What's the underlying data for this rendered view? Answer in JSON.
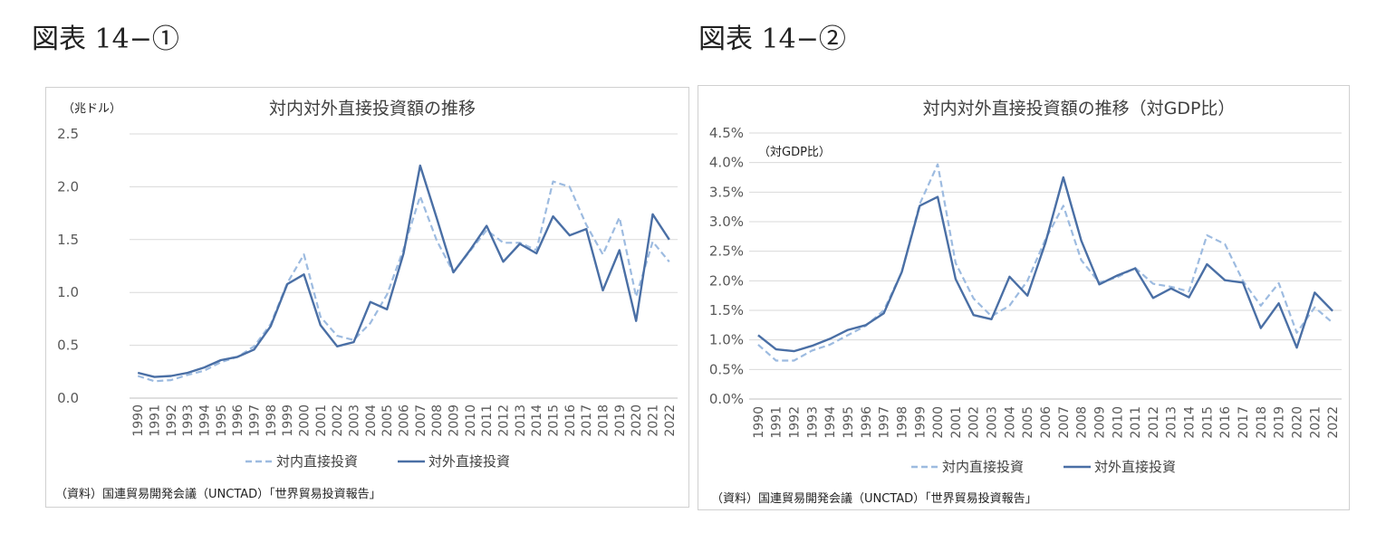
{
  "figures": [
    {
      "label": "図表 14−①"
    },
    {
      "label": "図表 14−②"
    }
  ],
  "colors": {
    "inward": "#9dbbe0",
    "outward": "#4a6fa5",
    "grid": "#d9d9d9"
  },
  "chart_data": [
    {
      "type": "line",
      "title": "対内対外直接投資額の推移",
      "unit_label": "（兆ドル）",
      "ylim": [
        0,
        2.5
      ],
      "yticks": [
        "0.0",
        "0.5",
        "1.0",
        "1.5",
        "2.0",
        "2.5"
      ],
      "ytick_values": [
        0,
        0.5,
        1.0,
        1.5,
        2.0,
        2.5
      ],
      "x": [
        "1990",
        "1991",
        "1992",
        "1993",
        "1994",
        "1995",
        "1996",
        "1997",
        "1998",
        "1999",
        "2000",
        "2001",
        "2002",
        "2003",
        "2004",
        "2005",
        "2006",
        "2007",
        "2008",
        "2009",
        "2010",
        "2011",
        "2012",
        "2013",
        "2014",
        "2015",
        "2016",
        "2017",
        "2018",
        "2019",
        "2020",
        "2021",
        "2022"
      ],
      "grid": true,
      "legend_position": "bottom",
      "series": [
        {
          "name": "対内直接投資",
          "style": "dashed",
          "values": [
            0.21,
            0.16,
            0.17,
            0.22,
            0.26,
            0.34,
            0.39,
            0.49,
            0.7,
            1.09,
            1.36,
            0.77,
            0.59,
            0.55,
            0.71,
            0.98,
            1.41,
            1.91,
            1.49,
            1.19,
            1.39,
            1.59,
            1.47,
            1.47,
            1.4,
            2.05,
            2.0,
            1.64,
            1.36,
            1.71,
            0.96,
            1.48,
            1.29
          ]
        },
        {
          "name": "対外直接投資",
          "style": "solid",
          "values": [
            0.24,
            0.2,
            0.21,
            0.24,
            0.29,
            0.36,
            0.39,
            0.46,
            0.68,
            1.08,
            1.17,
            0.69,
            0.49,
            0.53,
            0.91,
            0.84,
            1.37,
            2.2,
            1.7,
            1.19,
            1.4,
            1.63,
            1.29,
            1.46,
            1.37,
            1.72,
            1.54,
            1.6,
            1.02,
            1.4,
            0.73,
            1.74,
            1.5
          ]
        }
      ],
      "source": "（資料）国連貿易開発会議（UNCTAD）「世界貿易投資報告」"
    },
    {
      "type": "line",
      "title": "対内対外直接投資額の推移（対GDP比）",
      "unit_label": "（対GDP比）",
      "ylim": [
        0,
        4.5
      ],
      "yticks": [
        "0.0%",
        "0.5%",
        "1.0%",
        "1.5%",
        "2.0%",
        "2.5%",
        "3.0%",
        "3.5%",
        "4.0%",
        "4.5%"
      ],
      "ytick_values": [
        0,
        0.5,
        1.0,
        1.5,
        2.0,
        2.5,
        3.0,
        3.5,
        4.0,
        4.5
      ],
      "x": [
        "1990",
        "1991",
        "1992",
        "1993",
        "1994",
        "1995",
        "1996",
        "1997",
        "1998",
        "1999",
        "2000",
        "2001",
        "2002",
        "2003",
        "2004",
        "2005",
        "2006",
        "2007",
        "2008",
        "2009",
        "2010",
        "2011",
        "2012",
        "2013",
        "2014",
        "2015",
        "2016",
        "2017",
        "2018",
        "2019",
        "2020",
        "2021",
        "2022"
      ],
      "grid": true,
      "legend_position": "bottom",
      "series": [
        {
          "name": "対内直接投資",
          "style": "dashed",
          "values": [
            0.92,
            0.65,
            0.65,
            0.82,
            0.92,
            1.08,
            1.24,
            1.5,
            2.15,
            3.3,
            3.97,
            2.3,
            1.7,
            1.4,
            1.58,
            2.0,
            2.7,
            3.27,
            2.35,
            1.97,
            2.06,
            2.22,
            1.95,
            1.9,
            1.82,
            2.77,
            2.62,
            2.0,
            1.58,
            1.96,
            1.12,
            1.55,
            1.29
          ]
        },
        {
          "name": "対外直接投資",
          "style": "solid",
          "values": [
            1.08,
            0.84,
            0.81,
            0.9,
            1.02,
            1.17,
            1.25,
            1.45,
            2.15,
            3.27,
            3.42,
            2.03,
            1.42,
            1.35,
            2.07,
            1.75,
            2.64,
            3.75,
            2.68,
            1.94,
            2.09,
            2.21,
            1.71,
            1.87,
            1.72,
            2.28,
            2.01,
            1.97,
            1.2,
            1.62,
            0.87,
            1.8,
            1.49
          ]
        }
      ],
      "source": "（資料）国連貿易開発会議（UNCTAD）「世界貿易投資報告」"
    }
  ]
}
